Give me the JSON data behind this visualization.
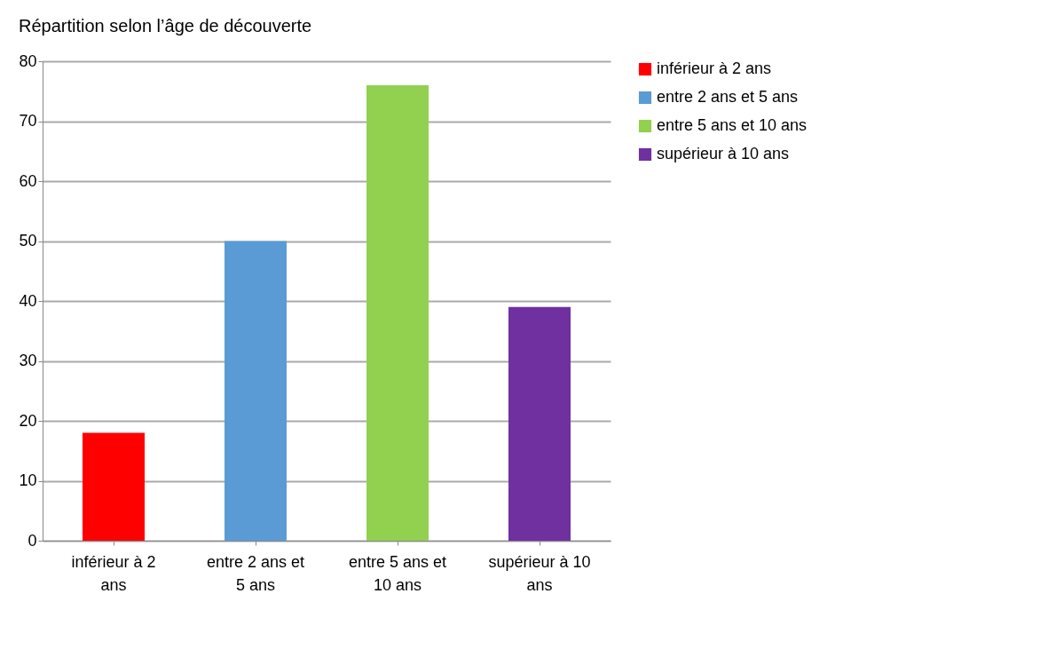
{
  "chart_data": {
    "type": "bar",
    "title": "Répartition selon l’âge de découverte",
    "categories": [
      "inférieur à 2 ans",
      "entre 2 ans et 5 ans",
      "entre 5 ans et 10 ans",
      "supérieur à 10 ans"
    ],
    "series": [
      {
        "name": "inférieur à 2 ans",
        "color": "#ff0000",
        "values": [
          18,
          null,
          null,
          null
        ]
      },
      {
        "name": "entre 2 ans et 5 ans",
        "color": "#5b9bd5",
        "values": [
          null,
          50,
          null,
          null
        ]
      },
      {
        "name": "entre 5 ans et 10 ans",
        "color": "#92d050",
        "values": [
          null,
          null,
          76,
          null
        ]
      },
      {
        "name": "supérieur à 10 ans",
        "color": "#7030a0",
        "values": [
          null,
          null,
          null,
          39
        ]
      }
    ],
    "ylim": [
      0,
      80
    ],
    "yticks": [
      0,
      10,
      20,
      30,
      40,
      50,
      60,
      70,
      80
    ],
    "grid": "y",
    "legend": "right"
  }
}
